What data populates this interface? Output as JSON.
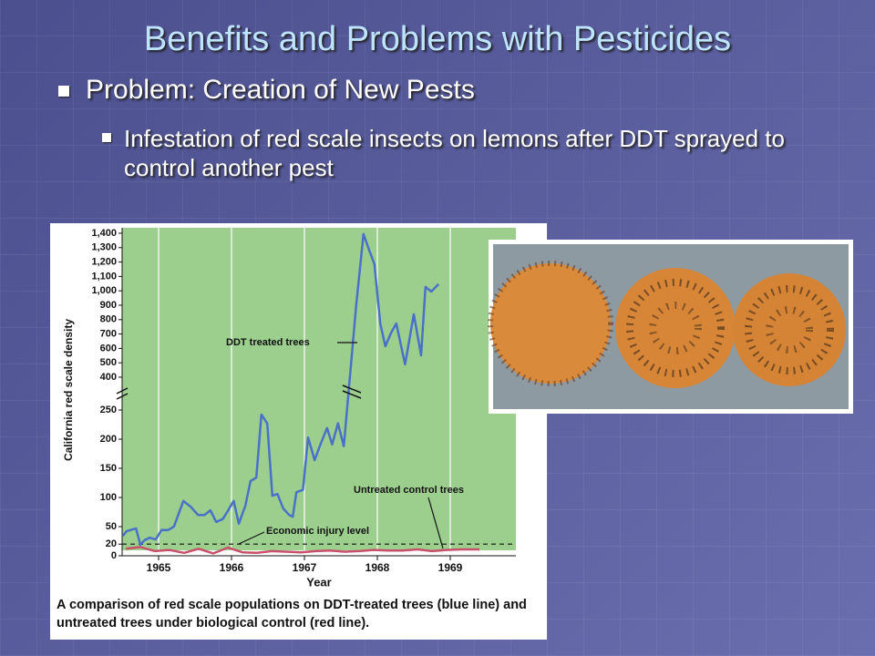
{
  "slide": {
    "title": "Benefits and Problems with Pesticides",
    "bullet": "Problem: Creation of New Pests",
    "sub_bullet": "Infestation of red scale insects on lemons after DDT sprayed to control another pest"
  },
  "chart_data": {
    "type": "line",
    "ylabel": "California red scale density",
    "xlabel": "Year",
    "caption": "A comparison of red scale populations on DDT-treated trees (blue line) and untreated trees under biological control (red line).",
    "xlim": [
      1964.5,
      1969.9
    ],
    "xticks": [
      1965,
      1966,
      1967,
      1968,
      1969
    ],
    "ylim": [
      0,
      1400
    ],
    "axis_break": [
      250,
      400
    ],
    "yticks": [
      0,
      20,
      50,
      100,
      150,
      200,
      250,
      400,
      500,
      600,
      700,
      800,
      900,
      {
        "value": 1000,
        "label": "1,000"
      },
      {
        "value": 1100,
        "label": "1,100"
      },
      {
        "value": 1200,
        "label": "1,200"
      },
      {
        "value": 1300,
        "label": "1,300"
      },
      {
        "value": 1400,
        "label": "1,400"
      }
    ],
    "grid": true,
    "reference_line": {
      "name": "Economic injury level",
      "value": 20
    },
    "series": [
      {
        "name": "DDT treated trees",
        "color": "#4a70c8",
        "x": [
          1964.51,
          1964.56,
          1964.69,
          1964.75,
          1964.81,
          1964.88,
          1964.96,
          1965.04,
          1965.13,
          1965.21,
          1965.34,
          1965.44,
          1965.54,
          1965.63,
          1965.71,
          1965.79,
          1965.88,
          1965.94,
          1966.03,
          1966.1,
          1966.19,
          1966.26,
          1966.34,
          1966.41,
          1966.49,
          1966.56,
          1966.63,
          1966.71,
          1966.79,
          1966.84,
          1966.89,
          1966.98,
          1967.05,
          1967.14,
          1967.21,
          1967.31,
          1967.38,
          1967.46,
          1967.54,
          1967.71,
          1967.81,
          1967.89,
          1967.96,
          1968.04,
          1968.11,
          1968.19,
          1968.26,
          1968.38,
          1968.5,
          1968.6,
          1968.66,
          1968.74,
          1968.84
        ],
        "values": [
          34,
          42,
          47,
          19,
          27,
          31,
          28,
          44,
          44,
          50,
          94,
          84,
          70,
          70,
          78,
          58,
          63,
          75,
          94,
          55,
          86,
          128,
          134,
          242,
          227,
          103,
          106,
          81,
          70,
          67,
          109,
          113,
          203,
          164,
          188,
          219,
          191,
          227,
          188,
          900,
          1394,
          1280,
          1185,
          773,
          615,
          710,
          773,
          489,
          837,
          552,
          1027,
          995,
          1046
        ]
      },
      {
        "name": "Untreated control trees",
        "color": "#c8506a",
        "x": [
          1964.55,
          1964.75,
          1964.95,
          1965.15,
          1965.35,
          1965.55,
          1965.75,
          1965.95,
          1966.15,
          1966.35,
          1966.55,
          1966.75,
          1966.95,
          1967.15,
          1967.35,
          1967.55,
          1967.75,
          1967.95,
          1968.15,
          1968.35,
          1968.55,
          1968.75,
          1968.95,
          1969.15,
          1969.4
        ],
        "values": [
          12,
          15,
          8,
          10,
          5,
          12,
          4,
          14,
          6,
          5,
          8,
          7,
          6,
          8,
          9,
          7,
          8,
          10,
          9,
          9,
          11,
          8,
          10,
          11,
          11
        ]
      }
    ]
  }
}
